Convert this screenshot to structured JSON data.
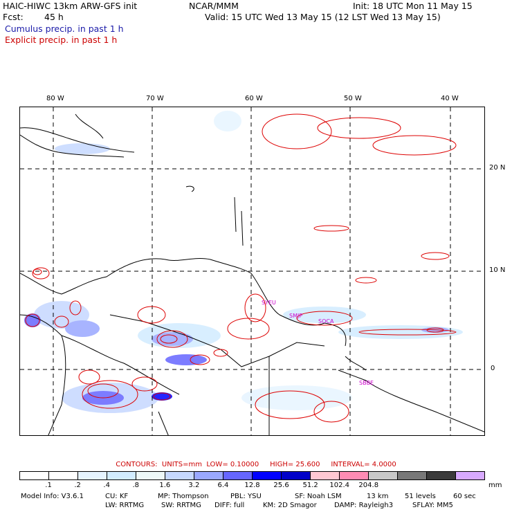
{
  "header": {
    "model_title": "HAIC-HIWC 13km ARW-GFS init",
    "org": "NCAR/MMM",
    "init": "Init: 18 UTC Mon 11 May 15",
    "fcst_label": "Fcst:",
    "fcst_value": "45 h",
    "valid": "Valid: 15 UTC Wed 13 May 15 (12 LST Wed 13 May 15)",
    "legend_cumulus": "Cumulus precip. in past 1 h",
    "legend_explicit": "Explicit precip. in past 1 h"
  },
  "map": {
    "lon_labels": [
      "80 W",
      "70 W",
      "60 W",
      "50 W",
      "40 W"
    ],
    "lat_labels": [
      "20 N",
      "10 N",
      "0"
    ],
    "stations": [
      "SYEU",
      "SMJP",
      "SOCA",
      "SBBE"
    ],
    "colors": {
      "contour": "#dd0000",
      "coast": "#000000",
      "station": "#cc00cc",
      "grid": "#000000"
    }
  },
  "contour_info": {
    "label": "CONTOURS:",
    "units": "UNITS=mm",
    "low": "LOW= 0.10000",
    "high": "HIGH= 25.600",
    "interval": "INTERVAL= 4.0000"
  },
  "colorbar": {
    "colors": [
      "#ffffff",
      "#ffffff",
      "#e6f4ff",
      "#d2ecff",
      "#eef8f8",
      "#c6d8ff",
      "#9aa8ff",
      "#6666ff",
      "#0000ff",
      "#0000c8",
      "#ffc8d2",
      "#ff8cb4",
      "#c8c8c8",
      "#787878",
      "#3a3a3a",
      "#d8aaff"
    ],
    "ticks": [
      ".1",
      ".2",
      ".4",
      ".8",
      "1.6",
      "3.2",
      "6.4",
      "12.8",
      "25.6",
      "51.2",
      "102.4",
      "204.8"
    ],
    "units": "mm"
  },
  "model_info": {
    "line1": [
      "Model Info: V3.6.1",
      "CU: KF",
      "MP: Thompson",
      "PBL: YSU",
      "SF: Noah LSM",
      "13 km",
      "51 levels",
      "60 sec"
    ],
    "line2": [
      "LW: RRTMG",
      "SW: RRTMG",
      "DIFF: full",
      "KM: 2D Smagor",
      "DAMP: Rayleigh3",
      "SFLAY: MM5"
    ]
  }
}
